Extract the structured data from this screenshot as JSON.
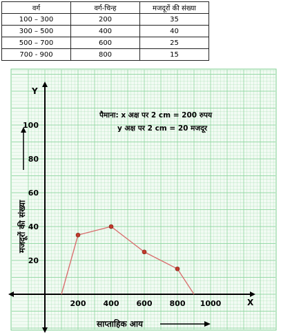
{
  "table": {
    "headers": [
      "वर्ग",
      "वर्ग-चिन्ह",
      "मजदूरों की संख्या"
    ],
    "rows": [
      [
        "100 – 300",
        "200",
        "35"
      ],
      [
        "300 – 500",
        "400",
        "40"
      ],
      [
        "500 – 700",
        "600",
        "25"
      ],
      [
        "700 - 900",
        "800",
        "15"
      ]
    ]
  },
  "chart_data": {
    "type": "line",
    "title": "",
    "scale_note": [
      "पैमाना: x अक्ष पर 2 cm = 200 रुपय",
      "y अक्ष पर  2 cm = 20  मजदूर"
    ],
    "xlabel": "साप्ताहिक आय",
    "ylabel": "मजदूरों की संख्या",
    "x_axis_letter": "X",
    "y_axis_letter": "Y",
    "x_ticks": [
      "200",
      "400",
      "600",
      "800",
      "1000"
    ],
    "y_ticks": [
      "20",
      "40",
      "60",
      "80",
      "100"
    ],
    "xlim": [
      -100,
      1100
    ],
    "ylim": [
      -16,
      118
    ],
    "grid": true,
    "grid_color": "#8fd6a0",
    "line_color": "#d97070",
    "marker_color": "#c0392b",
    "x": [
      100,
      200,
      400,
      600,
      800,
      900
    ],
    "y": [
      0,
      35,
      40,
      25,
      15,
      0
    ],
    "marked": [
      false,
      true,
      true,
      true,
      true,
      false
    ]
  }
}
